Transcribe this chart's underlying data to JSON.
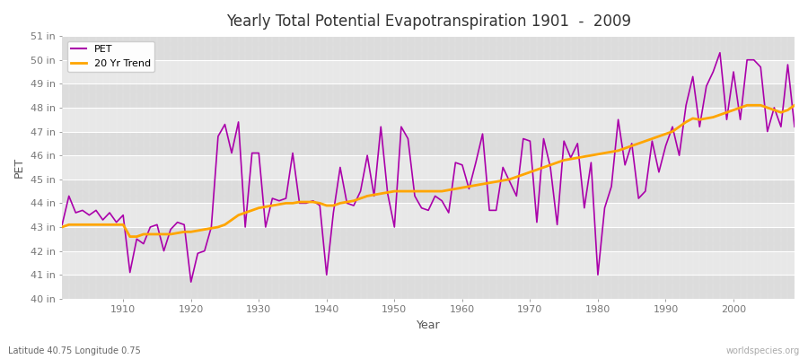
{
  "title": "Yearly Total Potential Evapotranspiration 1901  -  2009",
  "xlabel": "Year",
  "ylabel": "PET",
  "subtitle": "Latitude 40.75 Longitude 0.75",
  "watermark": "worldspecies.org",
  "bg_color": "#f0f0f0",
  "plot_bg_color": "#dcdcdc",
  "band_color_light": "#e8e8e8",
  "band_color_dark": "#d0d0d0",
  "pet_color": "#aa00aa",
  "trend_color": "#ffa500",
  "ylim": [
    40,
    51
  ],
  "xlim": [
    1901,
    2009
  ],
  "years": [
    1901,
    1902,
    1903,
    1904,
    1905,
    1906,
    1907,
    1908,
    1909,
    1910,
    1911,
    1912,
    1913,
    1914,
    1915,
    1916,
    1917,
    1918,
    1919,
    1920,
    1921,
    1922,
    1923,
    1924,
    1925,
    1926,
    1927,
    1928,
    1929,
    1930,
    1931,
    1932,
    1933,
    1934,
    1935,
    1936,
    1937,
    1938,
    1939,
    1940,
    1941,
    1942,
    1943,
    1944,
    1945,
    1946,
    1947,
    1948,
    1949,
    1950,
    1951,
    1952,
    1953,
    1954,
    1955,
    1956,
    1957,
    1958,
    1959,
    1960,
    1961,
    1962,
    1963,
    1964,
    1965,
    1966,
    1967,
    1968,
    1969,
    1970,
    1971,
    1972,
    1973,
    1974,
    1975,
    1976,
    1977,
    1978,
    1979,
    1980,
    1981,
    1982,
    1983,
    1984,
    1985,
    1986,
    1987,
    1988,
    1989,
    1990,
    1991,
    1992,
    1993,
    1994,
    1995,
    1996,
    1997,
    1998,
    1999,
    2000,
    2001,
    2002,
    2003,
    2004,
    2005,
    2006,
    2007,
    2008,
    2009
  ],
  "pet_values": [
    43.1,
    44.3,
    43.6,
    43.7,
    43.5,
    43.7,
    43.3,
    43.6,
    43.2,
    43.5,
    41.1,
    42.5,
    42.3,
    43.0,
    43.1,
    42.0,
    42.9,
    43.2,
    43.1,
    40.7,
    41.9,
    42.0,
    43.0,
    46.8,
    47.3,
    46.1,
    47.4,
    43.0,
    46.1,
    46.1,
    43.0,
    44.2,
    44.1,
    44.2,
    46.1,
    44.0,
    44.0,
    44.1,
    43.9,
    41.0,
    43.6,
    45.5,
    44.0,
    43.9,
    44.5,
    46.0,
    44.3,
    47.2,
    44.4,
    43.0,
    47.2,
    46.7,
    44.3,
    43.8,
    43.7,
    44.3,
    44.1,
    43.6,
    45.7,
    45.6,
    44.6,
    45.7,
    46.9,
    43.7,
    43.7,
    45.5,
    44.9,
    44.3,
    46.7,
    46.6,
    43.2,
    46.7,
    45.5,
    43.1,
    46.6,
    45.9,
    46.5,
    43.8,
    45.7,
    41.0,
    43.8,
    44.7,
    47.5,
    45.6,
    46.5,
    44.2,
    44.5,
    46.6,
    45.3,
    46.4,
    47.2,
    46.0,
    48.1,
    49.3,
    47.2,
    48.9,
    49.5,
    50.3,
    47.5,
    49.5,
    47.5,
    50.0,
    50.0,
    49.7,
    47.0,
    48.0,
    47.2,
    49.8,
    47.2
  ],
  "trend_years": [
    1901,
    1902,
    1903,
    1904,
    1905,
    1906,
    1907,
    1908,
    1909,
    1910,
    1911,
    1912,
    1913,
    1914,
    1915,
    1916,
    1917,
    1918,
    1919,
    1920,
    1921,
    1922,
    1923,
    1924,
    1925,
    1926,
    1927,
    1928,
    1929,
    1930,
    1931,
    1932,
    1933,
    1934,
    1935,
    1936,
    1937,
    1938,
    1939,
    1940,
    1941,
    1942,
    1943,
    1944,
    1945,
    1946,
    1947,
    1948,
    1949,
    1950,
    1951,
    1952,
    1953,
    1954,
    1955,
    1956,
    1957,
    1958,
    1959,
    1960,
    1961,
    1962,
    1963,
    1964,
    1965,
    1966,
    1967,
    1968,
    1969,
    1970,
    1971,
    1972,
    1973,
    1974,
    1975,
    1976,
    1977,
    1978,
    1979,
    1980,
    1981,
    1982,
    1983,
    1984,
    1985,
    1986,
    1987,
    1988,
    1989,
    1990,
    1991,
    1992,
    1993,
    1994,
    1995,
    1996,
    1997,
    1998,
    1999,
    2000,
    2001,
    2002,
    2003,
    2004,
    2005,
    2006,
    2007,
    2008,
    2009
  ],
  "trend_values": [
    43.0,
    43.1,
    43.1,
    43.1,
    43.1,
    43.1,
    43.1,
    43.1,
    43.1,
    43.1,
    42.6,
    42.6,
    42.7,
    42.7,
    42.7,
    42.7,
    42.7,
    42.75,
    42.8,
    42.8,
    42.85,
    42.9,
    42.95,
    43.0,
    43.1,
    43.3,
    43.5,
    43.6,
    43.7,
    43.8,
    43.85,
    43.9,
    43.95,
    44.0,
    44.0,
    44.05,
    44.05,
    44.05,
    44.0,
    43.9,
    43.9,
    44.0,
    44.05,
    44.1,
    44.2,
    44.3,
    44.35,
    44.4,
    44.45,
    44.5,
    44.5,
    44.5,
    44.5,
    44.5,
    44.5,
    44.5,
    44.5,
    44.55,
    44.6,
    44.65,
    44.7,
    44.75,
    44.8,
    44.85,
    44.9,
    44.95,
    45.0,
    45.1,
    45.2,
    45.3,
    45.4,
    45.5,
    45.6,
    45.7,
    45.8,
    45.85,
    45.9,
    45.95,
    46.0,
    46.05,
    46.1,
    46.15,
    46.2,
    46.3,
    46.4,
    46.5,
    46.6,
    46.7,
    46.8,
    46.9,
    47.0,
    47.2,
    47.4,
    47.55,
    47.5,
    47.55,
    47.6,
    47.7,
    47.8,
    47.9,
    48.0,
    48.1,
    48.1,
    48.1,
    48.0,
    47.9,
    47.8,
    47.9,
    48.1
  ]
}
